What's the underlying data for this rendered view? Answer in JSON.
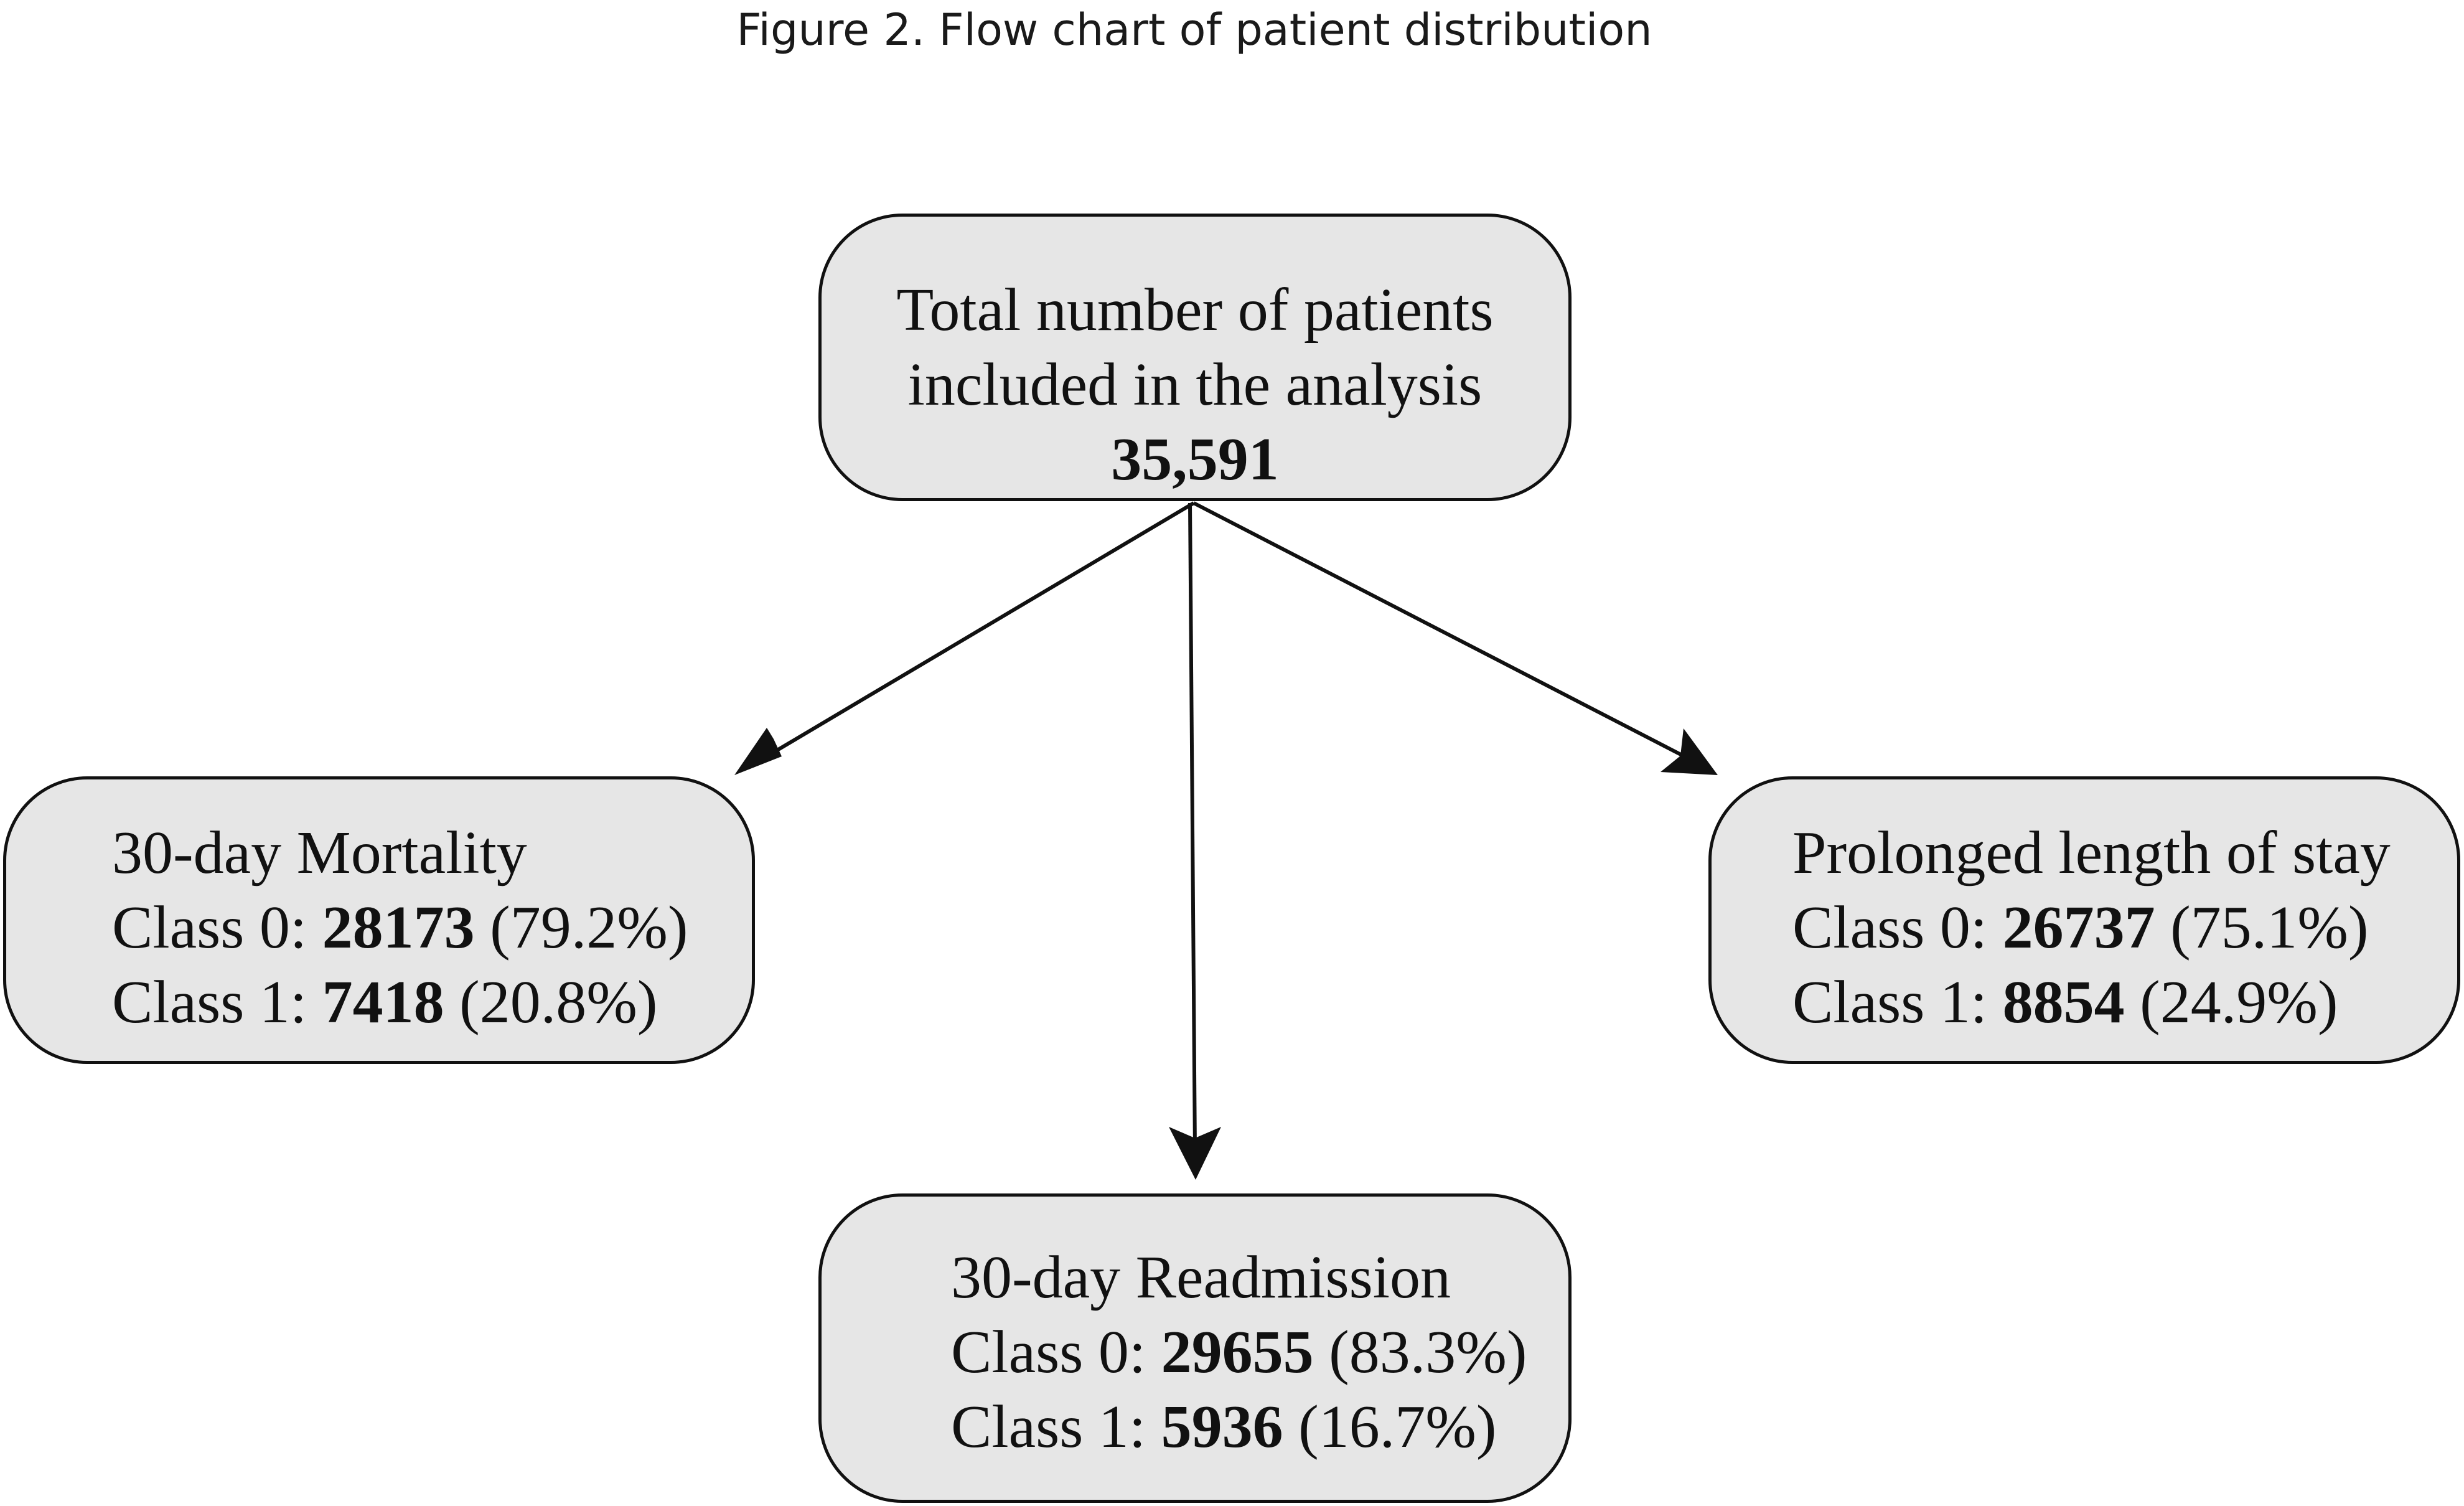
{
  "figure": {
    "title": "Figure 2. Flow chart of patient distribution"
  },
  "nodes": {
    "total": {
      "line1": "Total number of patients",
      "line2": "included in the analysis",
      "count": "35,591"
    },
    "mortality": {
      "heading": "30-day Mortality",
      "class0_label": "Class 0: ",
      "class0_count": "28173",
      "class0_pct": " (79.2%)",
      "class1_label": "Class 1: ",
      "class1_count": "7418",
      "class1_pct": " (20.8%)"
    },
    "readmission": {
      "heading": "30-day Readmission",
      "class0_label": "Class 0: ",
      "class0_count": "29655",
      "class0_pct": " (83.3%)",
      "class1_label": "Class 1: ",
      "class1_count": "5936",
      "class1_pct": " (16.7%)"
    },
    "los": {
      "heading": "Prolonged length of stay",
      "class0_label": "Class 0: ",
      "class0_count": "26737",
      "class0_pct": " (75.1%)",
      "class1_label": "Class 1: ",
      "class1_count": "8854",
      "class1_pct": " (24.9%)"
    }
  },
  "edges": [
    {
      "from": "total",
      "to": "mortality"
    },
    {
      "from": "total",
      "to": "readmission"
    },
    {
      "from": "total",
      "to": "los"
    }
  ],
  "colors": {
    "box_fill": "#e6e6e6",
    "stroke": "#111111",
    "text": "#111111"
  }
}
